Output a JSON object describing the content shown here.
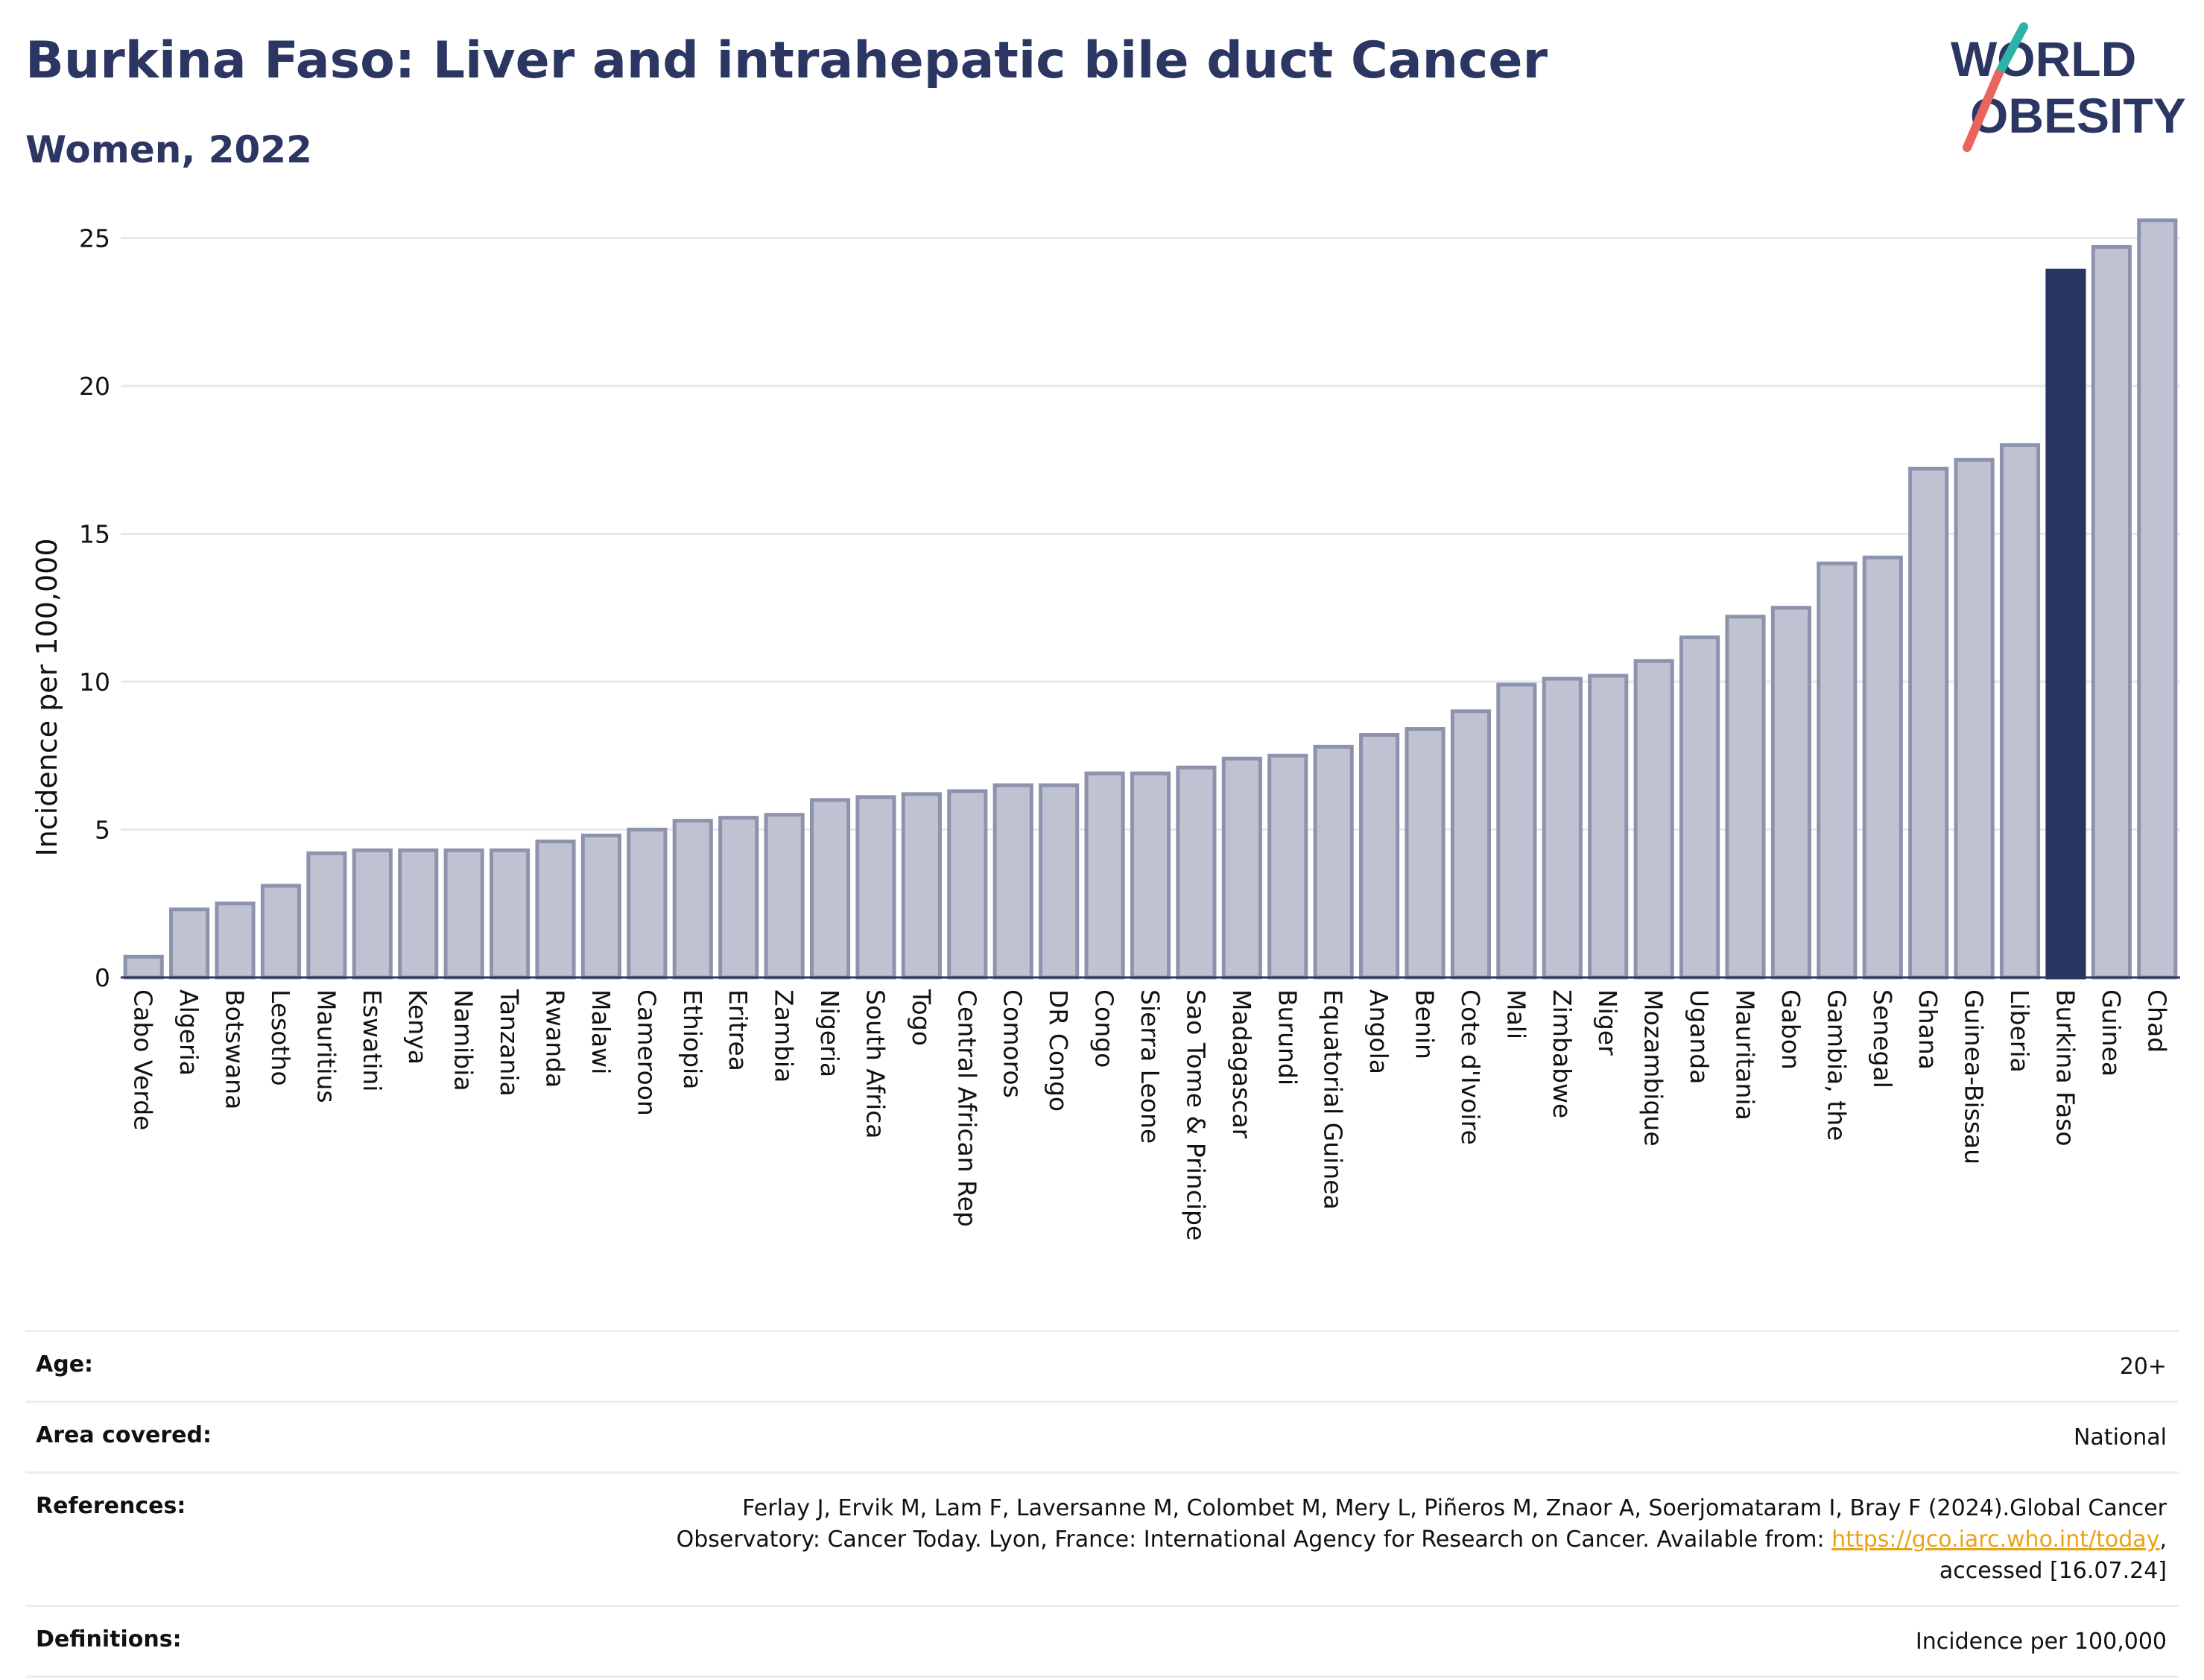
{
  "header": {
    "title": "Burkina Faso: Liver and intrahepatic bile duct Cancer",
    "subtitle": "Women, 2022"
  },
  "logo": {
    "line1": "WORLD",
    "line2": "OBESITY"
  },
  "chart_data": {
    "type": "bar",
    "ylabel": "Incidence per 100,000",
    "ylim": [
      0,
      26.5
    ],
    "yticks": [
      0,
      5,
      10,
      15,
      20,
      25
    ],
    "grid": true,
    "highlight": "Burkina Faso",
    "colors": {
      "bar": "#bfc3d1",
      "bar_border": "#8d93ad",
      "highlight": "#283461",
      "grid": "#e6e8ef",
      "axis": "#2c3663"
    },
    "categories": [
      "Cabo Verde",
      "Algeria",
      "Botswana",
      "Lesotho",
      "Mauritius",
      "Eswatini",
      "Kenya",
      "Namibia",
      "Tanzania",
      "Rwanda",
      "Malawi",
      "Cameroon",
      "Ethiopia",
      "Eritrea",
      "Zambia",
      "Nigeria",
      "South Africa",
      "Togo",
      "Central African Rep",
      "Comoros",
      "DR Congo",
      "Congo",
      "Sierra Leone",
      "Sao Tome & Principe",
      "Madagascar",
      "Burundi",
      "Equatorial Guinea",
      "Angola",
      "Benin",
      "Cote d'Ivoire",
      "Mali",
      "Zimbabwe",
      "Niger",
      "Mozambique",
      "Uganda",
      "Mauritania",
      "Gabon",
      "Gambia, the",
      "Senegal",
      "Ghana",
      "Guinea-Bissau",
      "Liberia",
      "Burkina Faso",
      "Guinea",
      "Chad"
    ],
    "values": [
      0.7,
      2.3,
      2.5,
      3.1,
      4.2,
      4.3,
      4.3,
      4.3,
      4.3,
      4.6,
      4.8,
      5.0,
      5.3,
      5.4,
      5.5,
      6.0,
      6.1,
      6.2,
      6.3,
      6.5,
      6.5,
      6.9,
      6.9,
      7.1,
      7.4,
      7.5,
      7.8,
      8.2,
      8.4,
      9.0,
      9.9,
      10.1,
      10.2,
      10.7,
      11.5,
      12.2,
      12.5,
      14.0,
      14.2,
      17.2,
      17.5,
      18.0,
      23.9,
      24.7,
      25.6
    ]
  },
  "info": {
    "age_label": "Age:",
    "age_value": "20+",
    "area_label": "Area covered:",
    "area_value": "National",
    "references_label": "References:",
    "references_line1": "Ferlay J, Ervik M, Lam F, Laversanne M, Colombet M, Mery L, Piñeros M, Znaor A, Soerjomataram I, Bray F (2024).Global Cancer",
    "references_line2_pre": "Observatory: Cancer Today. Lyon, France: International Agency for Research on Cancer. Available from: ",
    "references_link": "https://gco.iarc.who.int/today",
    "references_line2_post": ",",
    "references_line3": "accessed [16.07.24]",
    "definitions_label": "Definitions:",
    "definitions_value": "Incidence per 100,000"
  }
}
